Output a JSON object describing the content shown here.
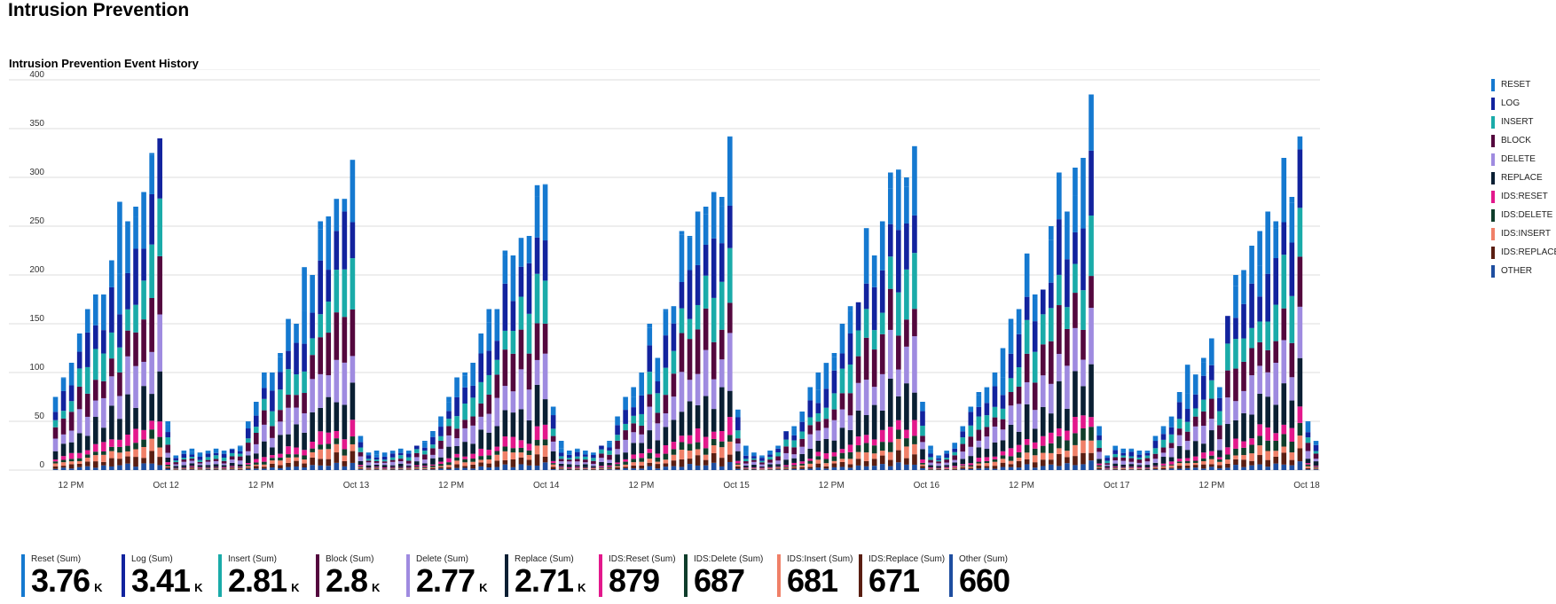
{
  "page": {
    "title": "Intrusion Prevention"
  },
  "chart_data": {
    "type": "bar",
    "stacked": true,
    "title": "Intrusion Prevention Event History",
    "xlabel": "",
    "ylabel": "",
    "ylim": [
      0,
      400
    ],
    "y_ticks": [
      0,
      50,
      100,
      150,
      200,
      250,
      300,
      350,
      400
    ],
    "x_tick_labels": [
      "12 PM",
      "Oct 12",
      "12 PM",
      "Oct 13",
      "12 PM",
      "Oct 14",
      "12 PM",
      "Oct 15",
      "12 PM",
      "Oct 16",
      "12 PM",
      "Oct 17",
      "12 PM",
      "Oct 18"
    ],
    "grid": true,
    "legend_position": "right",
    "bar_totals": [
      75,
      95,
      110,
      140,
      165,
      180,
      180,
      215,
      275,
      255,
      270,
      285,
      325,
      340,
      50,
      15,
      20,
      22,
      18,
      20,
      22,
      20,
      22,
      25,
      50,
      70,
      100,
      100,
      120,
      155,
      150,
      208,
      200,
      255,
      260,
      278,
      278,
      318,
      35,
      18,
      20,
      18,
      20,
      22,
      20,
      25,
      30,
      40,
      55,
      75,
      95,
      100,
      110,
      140,
      165,
      165,
      225,
      220,
      238,
      240,
      292,
      293,
      65,
      30,
      20,
      22,
      20,
      18,
      25,
      30,
      55,
      75,
      85,
      100,
      150,
      115,
      165,
      168,
      245,
      240,
      265,
      270,
      285,
      280,
      342,
      62,
      25,
      18,
      15,
      20,
      25,
      40,
      45,
      60,
      85,
      100,
      110,
      120,
      150,
      168,
      172,
      248,
      220,
      255,
      305,
      308,
      300,
      332,
      70,
      25,
      15,
      20,
      28,
      45,
      65,
      80,
      85,
      100,
      125,
      155,
      165,
      222,
      180,
      185,
      250,
      305,
      265,
      310,
      320,
      385,
      45,
      15,
      25,
      22,
      22,
      20,
      20,
      35,
      45,
      55,
      80,
      108,
      98,
      115,
      135,
      85,
      158,
      200,
      205,
      230,
      245,
      265,
      255,
      320,
      280,
      342,
      50,
      30
    ],
    "series": [
      {
        "name": "RESET",
        "color": "#1579d0",
        "share": 0.18
      },
      {
        "name": "LOG",
        "color": "#12239e",
        "share": 0.16
      },
      {
        "name": "INSERT",
        "color": "#1aaba9",
        "share": 0.13
      },
      {
        "name": "BLOCK",
        "color": "#54083e",
        "share": 0.13
      },
      {
        "name": "DELETE",
        "color": "#9f8be0",
        "share": 0.13
      },
      {
        "name": "REPLACE",
        "color": "#0a1f33",
        "share": 0.12
      },
      {
        "name": "IDS:RESET",
        "color": "#e3188c",
        "share": 0.04
      },
      {
        "name": "IDS:DELETE",
        "color": "#0f3d2b",
        "share": 0.03
      },
      {
        "name": "IDS:INSERT",
        "color": "#f08068",
        "share": 0.03
      },
      {
        "name": "IDS:REPLACE",
        "color": "#5a1e12",
        "share": 0.03
      },
      {
        "name": "OTHER",
        "color": "#1e4ea0",
        "share": 0.02
      }
    ]
  },
  "tiles": [
    {
      "label": "Reset (Sum)",
      "value": "3.76",
      "unit": "K",
      "color": "#1579d0"
    },
    {
      "label": "Log (Sum)",
      "value": "3.41",
      "unit": "K",
      "color": "#12239e"
    },
    {
      "label": "Insert (Sum)",
      "value": "2.81",
      "unit": "K",
      "color": "#1aaba9"
    },
    {
      "label": "Block (Sum)",
      "value": "2.8",
      "unit": "K",
      "color": "#54083e"
    },
    {
      "label": "Delete (Sum)",
      "value": "2.77",
      "unit": "K",
      "color": "#9f8be0"
    },
    {
      "label": "Replace (Sum)",
      "value": "2.71",
      "unit": "K",
      "color": "#0a1f33"
    },
    {
      "label": "IDS:Reset (Sum)",
      "value": "879",
      "unit": "",
      "color": "#e3188c"
    },
    {
      "label": "IDS:Delete (Sum)",
      "value": "687",
      "unit": "",
      "color": "#0f3d2b"
    },
    {
      "label": "IDS:Insert (Sum)",
      "value": "681",
      "unit": "",
      "color": "#f08068"
    },
    {
      "label": "IDS:Replace (Sum)",
      "value": "671",
      "unit": "",
      "color": "#5a1e12"
    },
    {
      "label": "Other (Sum)",
      "value": "660",
      "unit": "",
      "color": "#1e4ea0"
    }
  ]
}
